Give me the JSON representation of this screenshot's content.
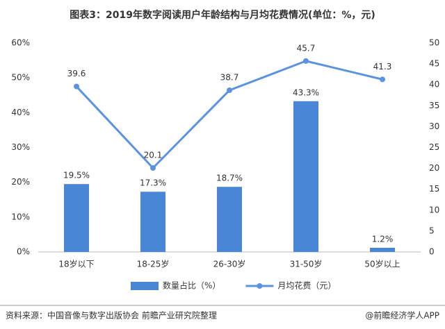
{
  "chart_data": {
    "type": "bar",
    "title": "图表3：2019年数字阅读用户年龄结构与月均花费情况(单位：%，元)",
    "categories": [
      "18岁以下",
      "18-25岁",
      "26-30岁",
      "31-50岁",
      "50岁以上"
    ],
    "series": [
      {
        "name": "数量占比（%）",
        "type": "bar",
        "color": "#4a86d6",
        "values": [
          19.5,
          17.3,
          18.7,
          43.3,
          1.2
        ],
        "value_labels": [
          "19.5%",
          "17.3%",
          "18.7%",
          "43.3%",
          "1.2%"
        ]
      },
      {
        "name": "月均花费（元）",
        "type": "line",
        "axis": "y2",
        "color": "#5b93de",
        "values": [
          39.6,
          20.1,
          38.7,
          45.7,
          41.3
        ]
      }
    ],
    "ylim": [
      0,
      60
    ],
    "yticks": [
      {
        "value": 0,
        "label": "0%"
      },
      {
        "value": 10,
        "label": "10%"
      },
      {
        "value": 20,
        "label": "20%"
      },
      {
        "value": 30,
        "label": "30%"
      },
      {
        "value": 40,
        "label": "40%"
      },
      {
        "value": 50,
        "label": "50%"
      },
      {
        "value": 60,
        "label": "60%"
      }
    ],
    "y2lim": [
      0,
      50
    ],
    "y2ticks": [
      0,
      5,
      10,
      15,
      20,
      25,
      30,
      35,
      40,
      45,
      50
    ],
    "grid": false,
    "legend": "bottom",
    "source": "资料来源：中国音像与数字出版协会  前瞻产业研究院整理",
    "credit": "@前瞻经济学人APP"
  }
}
